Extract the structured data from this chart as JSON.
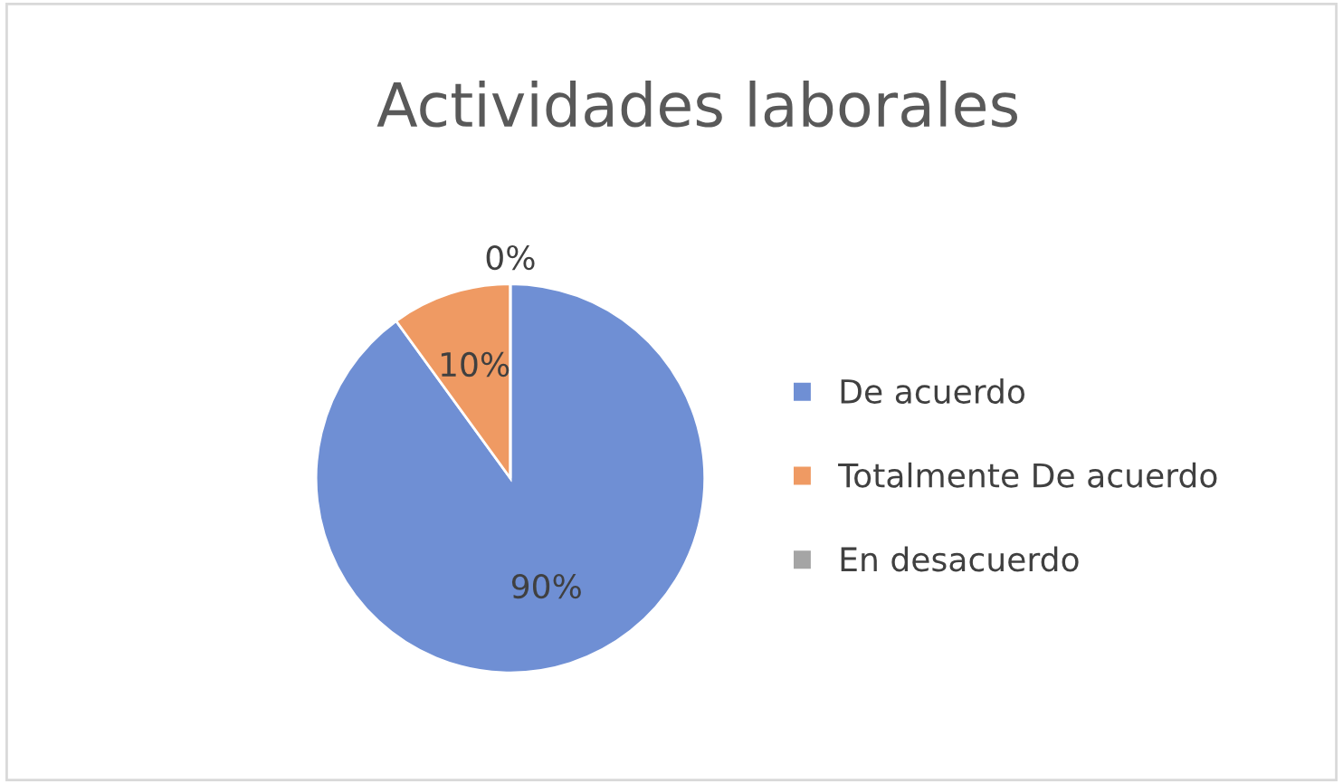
{
  "chart_data": {
    "type": "pie",
    "title": "Actividades laborales",
    "categories": [
      "De acuerdo",
      "Totalmente De acuerdo",
      "En desacuerdo"
    ],
    "values": [
      90,
      10,
      0
    ],
    "colors": [
      "#6f8fd4",
      "#ef9a63",
      "#a5a5a5"
    ],
    "value_labels": [
      "90%",
      "10%",
      "0%"
    ],
    "legend": "right"
  }
}
